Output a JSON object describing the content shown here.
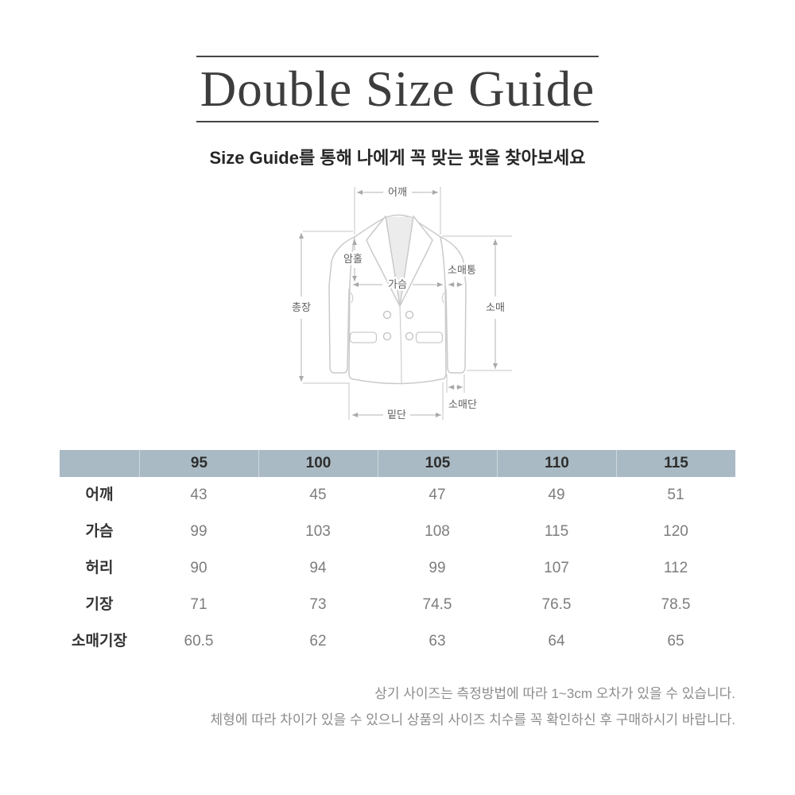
{
  "title": "Double Size Guide",
  "subtitle": "Size Guide를 통해 나에게 꼭 맞는 핏을 찾아보세요",
  "diagram": {
    "labels": {
      "shoulder": "어깨",
      "armhole": "암홀",
      "chest": "가슴",
      "sleeve_width": "소매통",
      "total_length": "총장",
      "sleeve": "소매",
      "sleeve_cuff": "소매단",
      "hem": "밑단"
    }
  },
  "size_table": {
    "sizes": [
      "95",
      "100",
      "105",
      "110",
      "115"
    ],
    "rows": [
      {
        "label": "어깨",
        "values": [
          "43",
          "45",
          "47",
          "49",
          "51"
        ]
      },
      {
        "label": "가슴",
        "values": [
          "99",
          "103",
          "108",
          "115",
          "120"
        ]
      },
      {
        "label": "허리",
        "values": [
          "90",
          "94",
          "99",
          "107",
          "112"
        ]
      },
      {
        "label": "기장",
        "values": [
          "71",
          "73",
          "74.5",
          "76.5",
          "78.5"
        ]
      },
      {
        "label": "소매기장",
        "values": [
          "60.5",
          "62",
          "63",
          "64",
          "65"
        ]
      }
    ],
    "header_bg": "#a9bac4"
  },
  "notes": [
    "상기 사이즈는 측정방법에 따라 1~3cm 오차가 있을 수 있습니다.",
    "체형에 따라 차이가 있을 수 있으니 상품의 사이즈 치수를 꼭 확인하신 후 구매하시기 바랍니다."
  ]
}
